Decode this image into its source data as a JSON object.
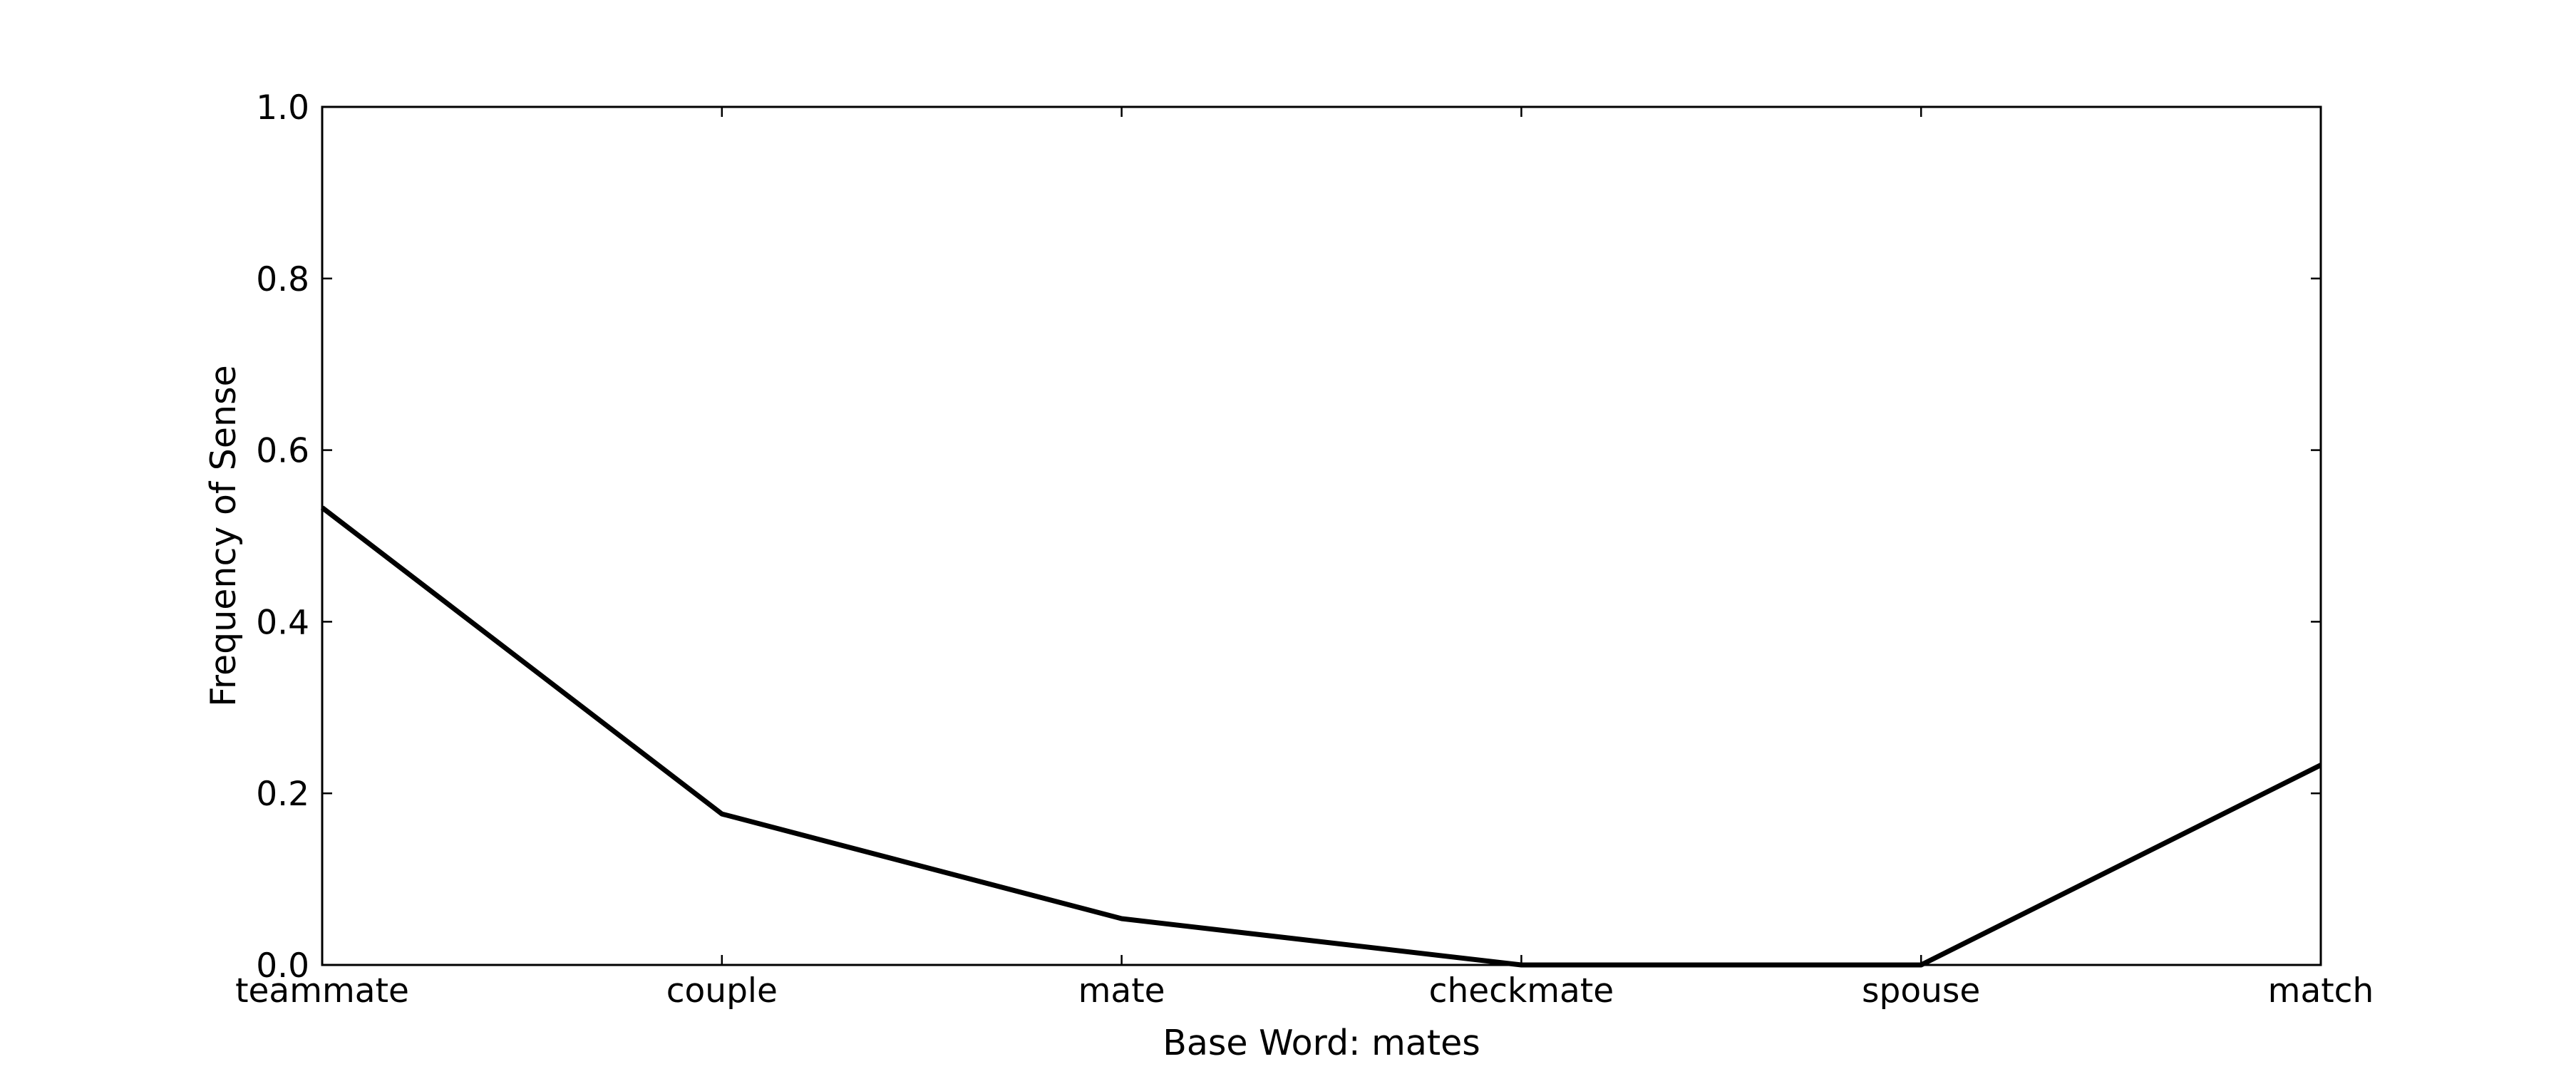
{
  "chart_data": {
    "type": "line",
    "categories": [
      "teammate",
      "couple",
      "mate",
      "checkmate",
      "spouse",
      "match"
    ],
    "series": [
      {
        "values": [
          0.533,
          0.176,
          0.054,
          0.0,
          0.0,
          0.233
        ]
      }
    ],
    "xlabel": "Base Word: mates",
    "ylabel": "Frequency of Sense",
    "ylim": [
      0,
      1.0
    ],
    "yticks": [
      "0.0",
      "0.2",
      "0.4",
      "0.6",
      "0.8",
      "1.0"
    ],
    "grid": false,
    "line_color": "#000000"
  }
}
